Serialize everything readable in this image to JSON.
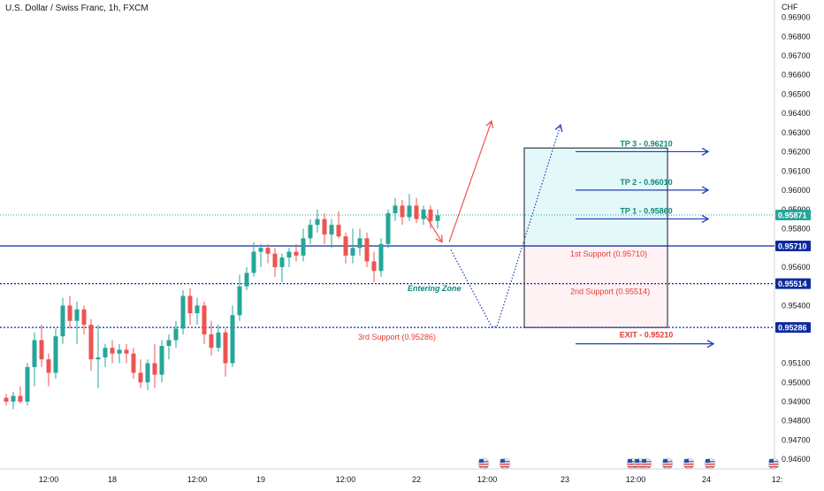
{
  "title": "U.S. Dollar / Swiss Franc, 1h, FXCM",
  "chart_data": {
    "type": "candlestick",
    "currency_label": "CHF",
    "ylim": [
      0.9455,
      0.9699
    ],
    "y_ticks": [
      "0.96900",
      "0.96800",
      "0.96700",
      "0.96600",
      "0.96500",
      "0.96400",
      "0.96300",
      "0.96200",
      "0.96100",
      "0.96000",
      "0.95900",
      "0.95800",
      "0.95600",
      "0.95500",
      "0.95400",
      "0.95100",
      "0.95000",
      "0.94900",
      "0.94800",
      "0.94700",
      "0.94600"
    ],
    "y_tick_values": [
      0.969,
      0.968,
      0.967,
      0.966,
      0.965,
      0.964,
      0.963,
      0.962,
      0.961,
      0.96,
      0.959,
      0.958,
      0.956,
      0.955,
      0.954,
      0.951,
      0.95,
      0.949,
      0.948,
      0.947,
      0.946
    ],
    "x_ticks": [
      {
        "label": "12:00",
        "bar": 6
      },
      {
        "label": "18",
        "bar": 15
      },
      {
        "label": "12:00",
        "bar": 27
      },
      {
        "label": "19",
        "bar": 36
      },
      {
        "label": "12:00",
        "bar": 48
      },
      {
        "label": "22",
        "bar": 58
      },
      {
        "label": "12:00",
        "bar": 68
      },
      {
        "label": "23",
        "bar": 79
      },
      {
        "label": "12:00",
        "bar": 89
      },
      {
        "label": "24",
        "bar": 99
      },
      {
        "label": "12:",
        "bar": 109
      }
    ],
    "bar_count_visible": 110,
    "candles": [
      [
        0.9492,
        0.9494,
        0.9488,
        0.949
      ],
      [
        0.949,
        0.9495,
        0.9486,
        0.9493
      ],
      [
        0.9493,
        0.9498,
        0.9489,
        0.949
      ],
      [
        0.949,
        0.951,
        0.9488,
        0.9508
      ],
      [
        0.9508,
        0.9526,
        0.9498,
        0.9522
      ],
      [
        0.9522,
        0.953,
        0.9508,
        0.9512
      ],
      [
        0.9512,
        0.9515,
        0.9498,
        0.9505
      ],
      [
        0.9505,
        0.9528,
        0.9502,
        0.9524
      ],
      [
        0.9524,
        0.9544,
        0.952,
        0.954
      ],
      [
        0.954,
        0.9545,
        0.9528,
        0.9532
      ],
      [
        0.9532,
        0.9542,
        0.952,
        0.9538
      ],
      [
        0.9538,
        0.954,
        0.9525,
        0.953
      ],
      [
        0.953,
        0.9533,
        0.9506,
        0.9512
      ],
      [
        0.9512,
        0.953,
        0.9497,
        0.9513
      ],
      [
        0.9513,
        0.952,
        0.9508,
        0.9518
      ],
      [
        0.9518,
        0.9522,
        0.951,
        0.9515
      ],
      [
        0.9515,
        0.952,
        0.951,
        0.9517
      ],
      [
        0.9517,
        0.952,
        0.951,
        0.9515
      ],
      [
        0.9515,
        0.9518,
        0.9502,
        0.9505
      ],
      [
        0.9505,
        0.9512,
        0.9497,
        0.95
      ],
      [
        0.95,
        0.9512,
        0.9496,
        0.951
      ],
      [
        0.951,
        0.952,
        0.9497,
        0.9504
      ],
      [
        0.9504,
        0.9522,
        0.95,
        0.9519
      ],
      [
        0.9519,
        0.9525,
        0.9512,
        0.9522
      ],
      [
        0.9522,
        0.9532,
        0.9518,
        0.9528
      ],
      [
        0.9528,
        0.9548,
        0.9525,
        0.9545
      ],
      [
        0.9545,
        0.9549,
        0.953,
        0.9536
      ],
      [
        0.9536,
        0.9544,
        0.953,
        0.954
      ],
      [
        0.954,
        0.9542,
        0.952,
        0.9525
      ],
      [
        0.9525,
        0.9532,
        0.9514,
        0.9518
      ],
      [
        0.9518,
        0.953,
        0.9516,
        0.9526
      ],
      [
        0.9526,
        0.9528,
        0.9503,
        0.951
      ],
      [
        0.951,
        0.954,
        0.9508,
        0.9535
      ],
      [
        0.9535,
        0.9556,
        0.9532,
        0.955
      ],
      [
        0.955,
        0.956,
        0.9548,
        0.9557
      ],
      [
        0.9557,
        0.9573,
        0.9555,
        0.9568
      ],
      [
        0.9568,
        0.9572,
        0.956,
        0.957
      ],
      [
        0.957,
        0.9572,
        0.9562,
        0.9567
      ],
      [
        0.9567,
        0.957,
        0.9555,
        0.956
      ],
      [
        0.956,
        0.9567,
        0.9552,
        0.9565
      ],
      [
        0.9565,
        0.957,
        0.956,
        0.9568
      ],
      [
        0.9568,
        0.9572,
        0.9563,
        0.9566
      ],
      [
        0.9566,
        0.958,
        0.9563,
        0.9575
      ],
      [
        0.9575,
        0.9585,
        0.9572,
        0.9582
      ],
      [
        0.9582,
        0.959,
        0.9578,
        0.9585
      ],
      [
        0.9585,
        0.9588,
        0.9572,
        0.9577
      ],
      [
        0.9577,
        0.9585,
        0.957,
        0.9582
      ],
      [
        0.9582,
        0.9589,
        0.9575,
        0.9576
      ],
      [
        0.9576,
        0.9578,
        0.9562,
        0.9566
      ],
      [
        0.9566,
        0.958,
        0.9562,
        0.957
      ],
      [
        0.957,
        0.958,
        0.9566,
        0.9575
      ],
      [
        0.9575,
        0.9578,
        0.956,
        0.9563
      ],
      [
        0.9563,
        0.9568,
        0.9552,
        0.9558
      ],
      [
        0.9558,
        0.9575,
        0.9555,
        0.9572
      ],
      [
        0.9572,
        0.959,
        0.957,
        0.9588
      ],
      [
        0.9588,
        0.9596,
        0.9584,
        0.9592
      ],
      [
        0.9592,
        0.9595,
        0.9582,
        0.9586
      ],
      [
        0.9586,
        0.9598,
        0.9584,
        0.9592
      ],
      [
        0.9592,
        0.9596,
        0.9583,
        0.9585
      ],
      [
        0.9585,
        0.9592,
        0.9582,
        0.959
      ],
      [
        0.959,
        0.9592,
        0.958,
        0.9584
      ],
      [
        0.9584,
        0.959,
        0.958,
        0.9587
      ]
    ],
    "candle_colors": {
      "up": "#26a69a",
      "down": "#ef5350"
    },
    "price_lines": [
      {
        "price": 0.95871,
        "label": "0.95871",
        "color": "#26a69a",
        "style": "dotted"
      },
      {
        "price": 0.9571,
        "label": "0.95710",
        "color": "#0d2b9e",
        "style": "solid"
      },
      {
        "price": 0.95514,
        "label": "0.95514",
        "color": "#0d2b9e",
        "style": "dashed"
      },
      {
        "price": 0.95286,
        "label": "0.95286",
        "color": "#0d2b9e",
        "style": "dashed"
      }
    ],
    "annotations": {
      "tp_labels": [
        {
          "text": "TP 3 - 0.96210",
          "price": 0.9621,
          "color": "#0b8a7a"
        },
        {
          "text": "TP 2 - 0.96010",
          "price": 0.9601,
          "color": "#0b8a7a"
        },
        {
          "text": "TP 1 - 0.95860",
          "price": 0.9586,
          "color": "#0b8a7a"
        }
      ],
      "exit_label": {
        "text": "EXIT - 0.95210",
        "price": 0.9521,
        "color": "#e53935"
      },
      "support_labels": [
        {
          "text": "1st Support (0.95710)",
          "price": 0.9571
        },
        {
          "text": "2nd Support (0.95514)",
          "price": 0.95514
        },
        {
          "text": "3rd Support (0.95286)",
          "price": 0.95286
        }
      ],
      "zone_label": "Entering Zone",
      "box_top_price": 0.9622,
      "box_mid_price": 0.9571,
      "box_bottom_price": 0.95286
    },
    "event_flags_bars": [
      68,
      71,
      89,
      90,
      91,
      94,
      97,
      100,
      109
    ]
  }
}
